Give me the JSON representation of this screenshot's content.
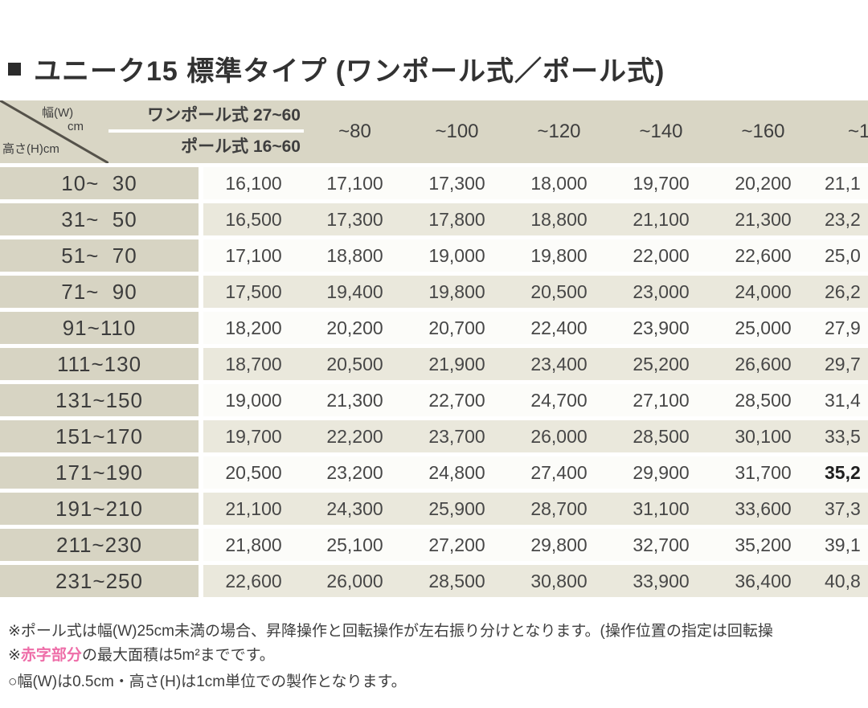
{
  "title": {
    "text": "ユニーク15 標準タイプ (ワンポール式／ポール式)"
  },
  "table": {
    "corner": {
      "width_label": "幅(W)",
      "width_unit": "cm",
      "height_label": "高さ(H)cm"
    },
    "first_col_header": {
      "row1": "ワンポール式 27~60",
      "row2": "ポール式 16~60"
    },
    "col_headers": [
      "~80",
      "~100",
      "~120",
      "~140",
      "~160",
      "~1"
    ],
    "rows": [
      {
        "label": "10~  30",
        "values": [
          "16,100",
          "17,100",
          "17,300",
          "18,000",
          "19,700",
          "20,200",
          "21,1"
        ]
      },
      {
        "label": "31~  50",
        "values": [
          "16,500",
          "17,300",
          "17,800",
          "18,800",
          "21,100",
          "21,300",
          "23,2"
        ]
      },
      {
        "label": "51~  70",
        "values": [
          "17,100",
          "18,800",
          "19,000",
          "19,800",
          "22,000",
          "22,600",
          "25,0"
        ]
      },
      {
        "label": "71~  90",
        "values": [
          "17,500",
          "19,400",
          "19,800",
          "20,500",
          "23,000",
          "24,000",
          "26,2"
        ]
      },
      {
        "label": "91~110",
        "values": [
          "18,200",
          "20,200",
          "20,700",
          "22,400",
          "23,900",
          "25,000",
          "27,9"
        ]
      },
      {
        "label": "111~130",
        "values": [
          "18,700",
          "20,500",
          "21,900",
          "23,400",
          "25,200",
          "26,600",
          "29,7"
        ]
      },
      {
        "label": "131~150",
        "values": [
          "19,000",
          "21,300",
          "22,700",
          "24,700",
          "27,100",
          "28,500",
          "31,4"
        ]
      },
      {
        "label": "151~170",
        "values": [
          "19,700",
          "22,200",
          "23,700",
          "26,000",
          "28,500",
          "30,100",
          "33,5"
        ]
      },
      {
        "label": "171~190",
        "values": [
          "20,500",
          "23,200",
          "24,800",
          "27,400",
          "29,900",
          "31,700",
          "35,2"
        ],
        "bold_last": true
      },
      {
        "label": "191~210",
        "values": [
          "21,100",
          "24,300",
          "25,900",
          "28,700",
          "31,100",
          "33,600",
          "37,3"
        ]
      },
      {
        "label": "211~230",
        "values": [
          "21,800",
          "25,100",
          "27,200",
          "29,800",
          "32,700",
          "35,200",
          "39,1"
        ]
      },
      {
        "label": "231~250",
        "values": [
          "22,600",
          "26,000",
          "28,500",
          "30,800",
          "33,900",
          "36,400",
          "40,8"
        ]
      }
    ]
  },
  "footnotes": {
    "line1": "※ポール式は幅(W)25cm未満の場合、昇降操作と回転操作が左右振り分けとなります。(操作位置の指定は回転操",
    "line2_prefix": "※",
    "line2_red": "赤字部分",
    "line2_rest": "の最大面積は5m²までです。",
    "line3": "○幅(W)は0.5cm・高さ(H)は1cm単位での製作となります。"
  },
  "colors": {
    "header_bg": "#d9d6c5",
    "row_label_bg": "#d7d4c3",
    "row_alt_bg": "#eae8dc",
    "row_bg": "#fcfcf9",
    "accent_pink": "#ee6da8",
    "text": "#3e3e3e"
  }
}
